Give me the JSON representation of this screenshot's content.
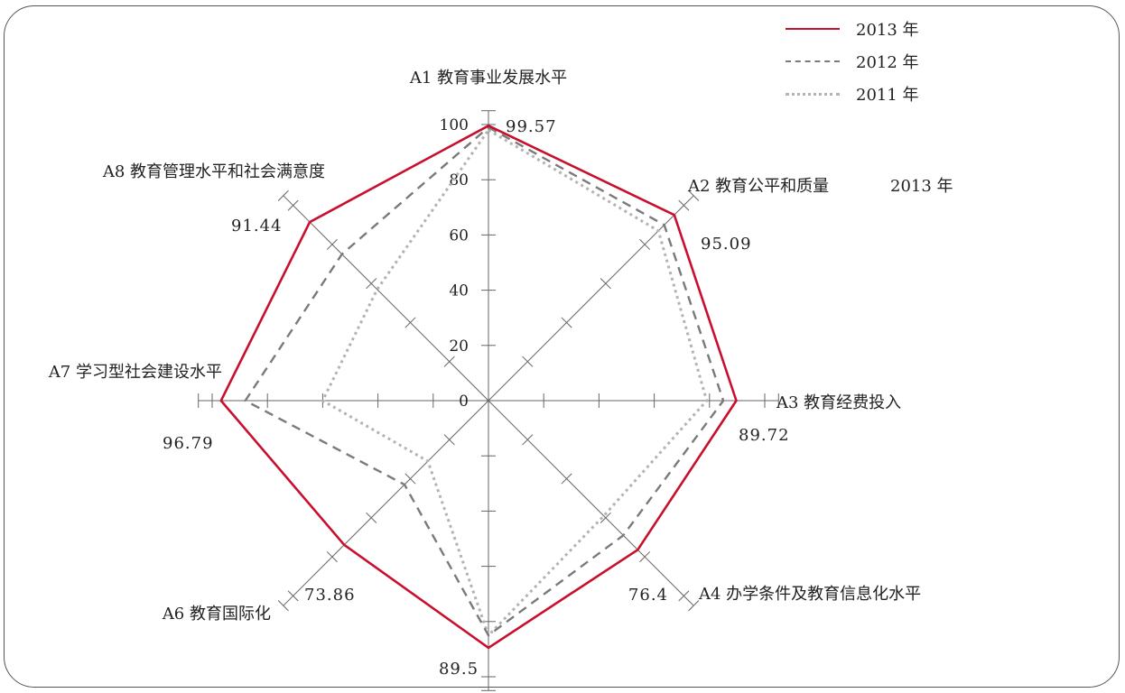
{
  "chart_data": {
    "type": "radar",
    "axes": [
      {
        "label": "A1 教育事业发展水平",
        "value_label": "99.57"
      },
      {
        "label": "A2 教育公平和质量",
        "value_label": "95.09"
      },
      {
        "label": "A3 教育经费投入",
        "value_label": "89.72"
      },
      {
        "label": "A4 办学条件及教育信息化水平",
        "value_label": "76.4"
      },
      {
        "label": "",
        "value_label": "89.5"
      },
      {
        "label": "A6 教育国际化",
        "value_label": "73.86"
      },
      {
        "label": "A7 学习型社会建设水平",
        "value_label": "96.79"
      },
      {
        "label": "A8 教育管理水平和社会满意度",
        "value_label": "91.44"
      }
    ],
    "annotation": "2013 年",
    "ticks": [
      "0",
      "20",
      "40",
      "60",
      "80",
      "100"
    ],
    "range": [
      0,
      100
    ],
    "series": [
      {
        "name": "2013 年",
        "color": "#c8102e",
        "dash": "solid",
        "values": [
          99.57,
          95.09,
          89.72,
          76.4,
          89.5,
          73.86,
          96.79,
          91.44
        ]
      },
      {
        "name": "2012 年",
        "color": "#7a7a7a",
        "dash": "dashed",
        "values": [
          99,
          90,
          85,
          69,
          85,
          43,
          88,
          75
        ]
      },
      {
        "name": "2011 年",
        "color": "#b3b3b3",
        "dash": "dotted",
        "values": [
          98,
          87,
          79,
          59,
          85,
          31,
          60,
          57
        ]
      }
    ],
    "legend_position": "top-right"
  }
}
